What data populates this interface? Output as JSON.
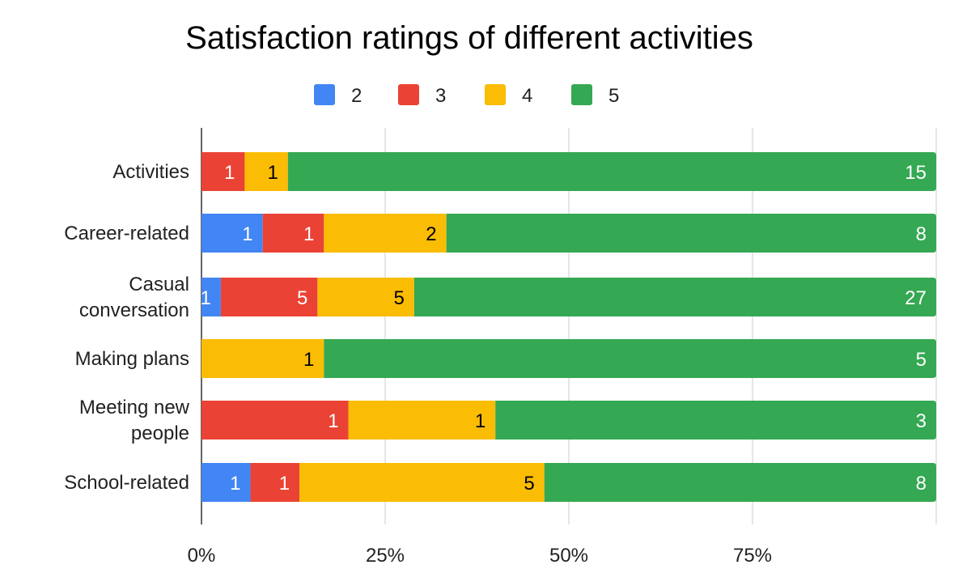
{
  "chart_data": {
    "type": "bar",
    "orientation": "horizontal",
    "stacked": "percent",
    "title": "Satisfaction ratings of different activities",
    "xlabel": "",
    "ylabel": "",
    "legend_position": "top",
    "grid": true,
    "xlim": [
      0,
      100
    ],
    "x_ticks": [
      "0%",
      "25%",
      "50%",
      "75%"
    ],
    "categories": [
      [
        "Activities"
      ],
      [
        "Career-related"
      ],
      [
        "Casual",
        "conversation"
      ],
      [
        "Making plans"
      ],
      [
        "Meeting new",
        "people"
      ],
      [
        "School-related"
      ]
    ],
    "series": [
      {
        "name": "2",
        "color": "#4285F4",
        "label_color": "#ffffff",
        "values": [
          0,
          1,
          1,
          0,
          0,
          1
        ]
      },
      {
        "name": "3",
        "color": "#EA4335",
        "label_color": "#ffffff",
        "values": [
          1,
          1,
          5,
          0,
          1,
          1
        ]
      },
      {
        "name": "4",
        "color": "#FBBC04",
        "label_color": "#000000",
        "values": [
          1,
          2,
          5,
          1,
          1,
          5
        ]
      },
      {
        "name": "5",
        "color": "#34A853",
        "label_color": "#ffffff",
        "values": [
          15,
          8,
          27,
          5,
          3,
          8
        ]
      }
    ]
  }
}
